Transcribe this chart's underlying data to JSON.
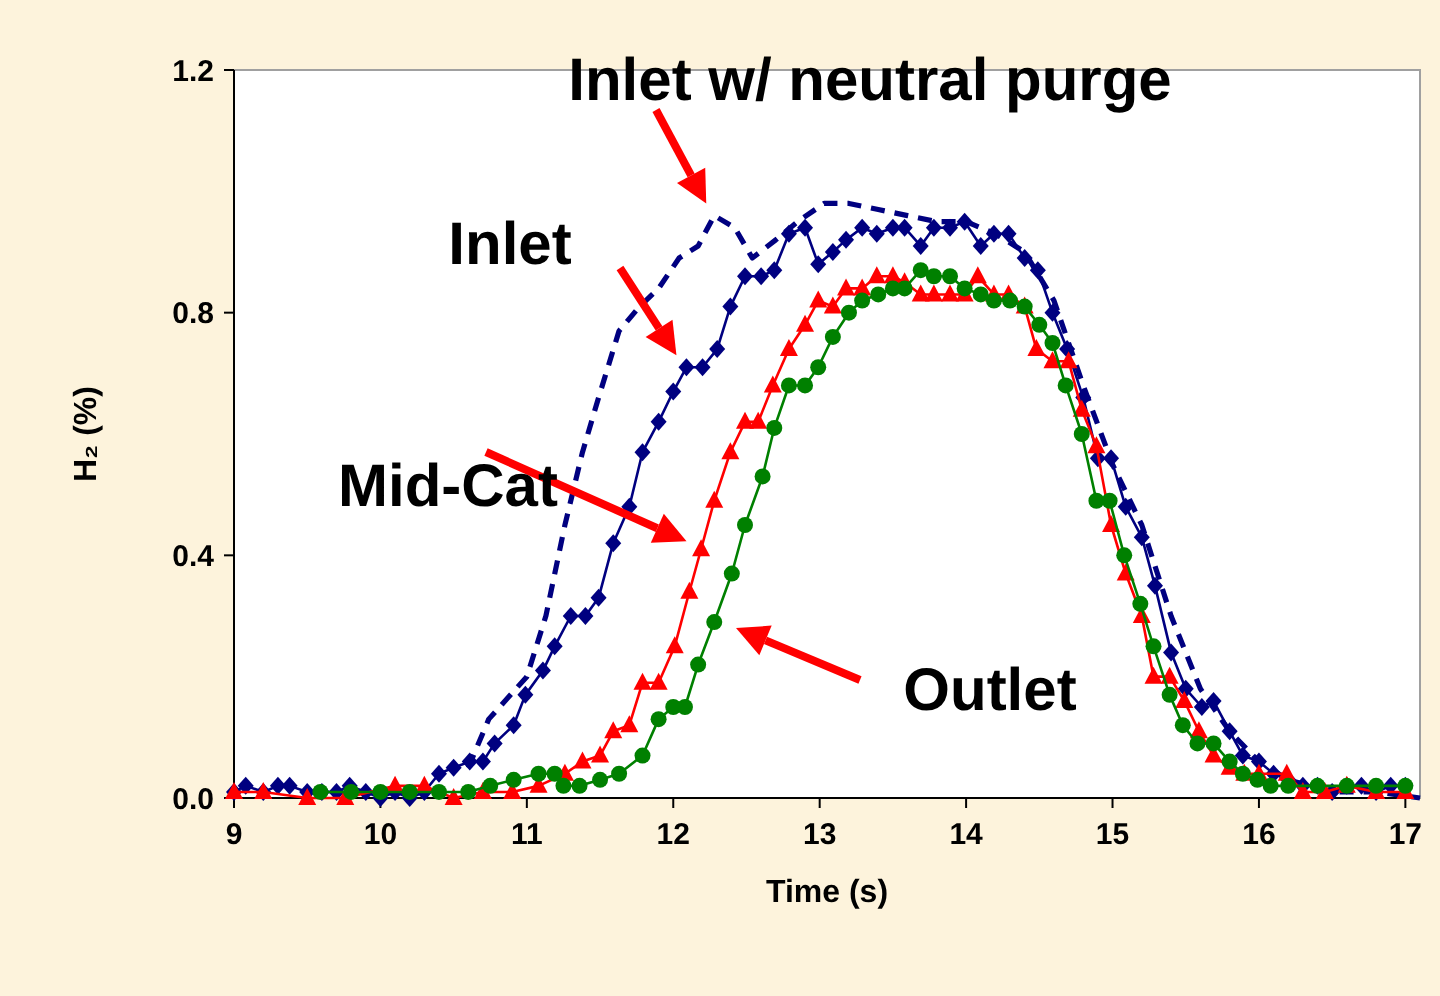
{
  "chart_data": {
    "type": "line",
    "xlabel": "Time (s)",
    "ylabel": "H₂ (%)",
    "xlim": [
      9,
      17.1
    ],
    "xticks": [
      9,
      10,
      11,
      12,
      13,
      14,
      15,
      16,
      17
    ],
    "ylim": [
      0,
      1.2
    ],
    "yticks": [
      {
        "value": 0,
        "label": "0.0"
      },
      {
        "value": 0.4,
        "label": "0.4"
      },
      {
        "value": 0.8,
        "label": "0.8"
      },
      {
        "value": 1.2,
        "label": "1.2"
      }
    ],
    "grid": false,
    "series": [
      {
        "color": "#000080",
        "marker": "none",
        "line_style": "dashed",
        "x": [
          10.6,
          10.74,
          11.0,
          11.13,
          11.26,
          11.38,
          11.49,
          11.63,
          11.77,
          11.9,
          12.04,
          12.17,
          12.28,
          12.42,
          12.54,
          12.7,
          12.85,
          13.03,
          13.2,
          13.4,
          13.6,
          13.8,
          14.0,
          14.2,
          14.4,
          14.6,
          14.8,
          15.0,
          15.2,
          15.4,
          15.6,
          15.8,
          16.0,
          16.2,
          16.5,
          16.8,
          17.1
        ],
        "values": [
          0.05,
          0.13,
          0.2,
          0.3,
          0.45,
          0.57,
          0.66,
          0.77,
          0.81,
          0.84,
          0.89,
          0.91,
          0.96,
          0.94,
          0.89,
          0.92,
          0.95,
          0.98,
          0.98,
          0.97,
          0.96,
          0.95,
          0.95,
          0.93,
          0.9,
          0.82,
          0.68,
          0.55,
          0.45,
          0.3,
          0.18,
          0.11,
          0.06,
          0.03,
          0.01,
          0.01,
          0.0
        ]
      },
      {
        "color": "#000080",
        "marker": "diamond",
        "line_style": "solid",
        "x": [
          9.0,
          9.08,
          9.2,
          9.3,
          9.38,
          9.5,
          9.6,
          9.7,
          9.79,
          9.9,
          10.0,
          10.1,
          10.2,
          10.3,
          10.4,
          10.5,
          10.61,
          10.7,
          10.78,
          10.91,
          10.99,
          11.11,
          11.19,
          11.3,
          11.4,
          11.49,
          11.59,
          11.7,
          11.79,
          11.9,
          12.0,
          12.09,
          12.2,
          12.3,
          12.39,
          12.49,
          12.6,
          12.69,
          12.79,
          12.9,
          12.99,
          13.09,
          13.18,
          13.29,
          13.39,
          13.5,
          13.58,
          13.69,
          13.78,
          13.89,
          13.99,
          14.1,
          14.19,
          14.29,
          14.4,
          14.49,
          14.59,
          14.69,
          14.8,
          14.9,
          14.99,
          15.09,
          15.2,
          15.29,
          15.4,
          15.5,
          15.61,
          15.69,
          15.8,
          15.89,
          16.0,
          16.1,
          16.2,
          16.3,
          16.4,
          16.5,
          16.6,
          16.7,
          16.8,
          16.9,
          17.0
        ],
        "values": [
          0.01,
          0.02,
          0.01,
          0.02,
          0.02,
          0.01,
          0.01,
          0.01,
          0.02,
          0.01,
          0.0,
          0.01,
          0.0,
          0.01,
          0.04,
          0.05,
          0.06,
          0.06,
          0.09,
          0.12,
          0.17,
          0.21,
          0.25,
          0.3,
          0.3,
          0.33,
          0.42,
          0.48,
          0.57,
          0.62,
          0.67,
          0.71,
          0.71,
          0.74,
          0.81,
          0.86,
          0.86,
          0.87,
          0.93,
          0.94,
          0.88,
          0.9,
          0.92,
          0.94,
          0.93,
          0.94,
          0.94,
          0.91,
          0.94,
          0.94,
          0.95,
          0.91,
          0.93,
          0.93,
          0.89,
          0.87,
          0.8,
          0.74,
          0.66,
          0.56,
          0.56,
          0.48,
          0.43,
          0.35,
          0.24,
          0.18,
          0.15,
          0.16,
          0.11,
          0.07,
          0.06,
          0.04,
          0.03,
          0.02,
          0.02,
          0.01,
          0.02,
          0.02,
          0.01,
          0.02,
          0.02
        ]
      },
      {
        "color": "#ff0000",
        "marker": "triangle",
        "line_style": "solid",
        "x": [
          9.0,
          9.2,
          9.5,
          9.76,
          10.1,
          10.3,
          10.5,
          10.7,
          10.9,
          11.08,
          11.26,
          11.38,
          11.5,
          11.59,
          11.7,
          11.79,
          11.9,
          12.01,
          12.11,
          12.19,
          12.28,
          12.39,
          12.49,
          12.58,
          12.68,
          12.79,
          12.9,
          12.99,
          13.09,
          13.18,
          13.29,
          13.39,
          13.5,
          13.58,
          13.69,
          13.78,
          13.89,
          13.99,
          14.08,
          14.19,
          14.29,
          14.4,
          14.48,
          14.59,
          14.7,
          14.79,
          14.89,
          14.99,
          15.09,
          15.2,
          15.28,
          15.39,
          15.49,
          15.59,
          15.69,
          15.8,
          15.9,
          16.0,
          16.19,
          16.3,
          16.45,
          16.6,
          16.8,
          17.0
        ],
        "values": [
          0.01,
          0.01,
          0.0,
          0.0,
          0.02,
          0.02,
          0.0,
          0.01,
          0.01,
          0.02,
          0.04,
          0.06,
          0.07,
          0.11,
          0.12,
          0.19,
          0.19,
          0.25,
          0.34,
          0.41,
          0.49,
          0.57,
          0.62,
          0.62,
          0.68,
          0.74,
          0.78,
          0.82,
          0.81,
          0.84,
          0.84,
          0.86,
          0.86,
          0.85,
          0.83,
          0.83,
          0.83,
          0.83,
          0.86,
          0.83,
          0.83,
          0.81,
          0.74,
          0.72,
          0.72,
          0.64,
          0.58,
          0.45,
          0.37,
          0.3,
          0.2,
          0.2,
          0.16,
          0.11,
          0.07,
          0.05,
          0.04,
          0.04,
          0.04,
          0.01,
          0.01,
          0.02,
          0.01,
          0.01
        ]
      },
      {
        "color": "#008000",
        "marker": "circle",
        "line_style": "solid",
        "x": [
          9.59,
          9.8,
          10.0,
          10.2,
          10.4,
          10.6,
          10.75,
          10.91,
          11.08,
          11.19,
          11.25,
          11.36,
          11.5,
          11.63,
          11.79,
          11.9,
          12.0,
          12.08,
          12.17,
          12.28,
          12.4,
          12.49,
          12.61,
          12.69,
          12.79,
          12.9,
          12.99,
          13.09,
          13.2,
          13.29,
          13.4,
          13.5,
          13.58,
          13.69,
          13.78,
          13.89,
          13.99,
          14.1,
          14.19,
          14.3,
          14.4,
          14.5,
          14.59,
          14.68,
          14.79,
          14.89,
          14.98,
          15.08,
          15.19,
          15.28,
          15.39,
          15.48,
          15.58,
          15.69,
          15.8,
          15.89,
          15.99,
          16.08,
          16.2,
          16.4,
          16.6,
          16.8,
          17.0
        ],
        "values": [
          0.01,
          0.01,
          0.01,
          0.01,
          0.01,
          0.01,
          0.02,
          0.03,
          0.04,
          0.04,
          0.02,
          0.02,
          0.03,
          0.04,
          0.07,
          0.13,
          0.15,
          0.15,
          0.22,
          0.29,
          0.37,
          0.45,
          0.53,
          0.61,
          0.68,
          0.68,
          0.71,
          0.76,
          0.8,
          0.82,
          0.83,
          0.84,
          0.84,
          0.87,
          0.86,
          0.86,
          0.84,
          0.83,
          0.82,
          0.82,
          0.81,
          0.78,
          0.75,
          0.68,
          0.6,
          0.49,
          0.49,
          0.4,
          0.32,
          0.25,
          0.17,
          0.12,
          0.09,
          0.09,
          0.06,
          0.04,
          0.03,
          0.02,
          0.02,
          0.02,
          0.02,
          0.02,
          0.02
        ]
      }
    ],
    "annotations": [
      {
        "text": "Inlet w/ neutral purge",
        "x": 12.28,
        "y": 0.96
      },
      {
        "text": "Inlet",
        "x": 12.09,
        "y": 0.71
      },
      {
        "text": "Mid-Cat",
        "x": 12.2,
        "y": 0.41
      },
      "Outlet"
    ]
  }
}
